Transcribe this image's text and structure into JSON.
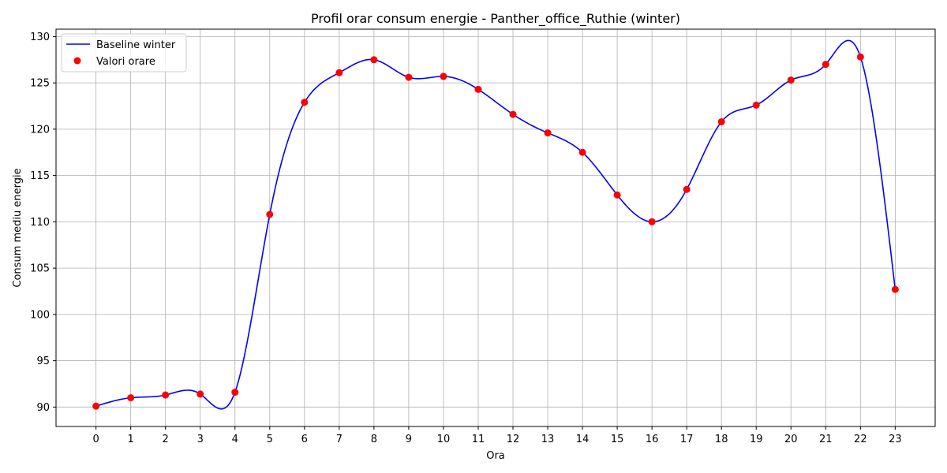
{
  "chart_data": {
    "type": "line",
    "title": "Profil orar consum energie - Panther_office_Ruthie (winter)",
    "xlabel": "Ora",
    "ylabel": "Consum mediu energie",
    "x": [
      0,
      1,
      2,
      3,
      4,
      5,
      6,
      7,
      8,
      9,
      10,
      11,
      12,
      13,
      14,
      15,
      16,
      17,
      18,
      19,
      20,
      21,
      22,
      23
    ],
    "x_ticks": [
      "0",
      "1",
      "2",
      "3",
      "4",
      "5",
      "6",
      "7",
      "8",
      "9",
      "10",
      "11",
      "12",
      "13",
      "14",
      "15",
      "16",
      "17",
      "18",
      "19",
      "20",
      "21",
      "22",
      "23"
    ],
    "y_ticks": [
      "90",
      "95",
      "100",
      "105",
      "110",
      "115",
      "120",
      "125",
      "130"
    ],
    "xlim": [
      -1.15,
      24.15
    ],
    "ylim": [
      87.9,
      130.8
    ],
    "grid": true,
    "legend_position": "top-left",
    "series": [
      {
        "name": "Baseline winter",
        "kind": "line",
        "color": "#0000ff",
        "values": [
          90.1,
          91.0,
          91.3,
          91.4,
          91.6,
          110.8,
          122.9,
          126.1,
          127.5,
          125.6,
          125.7,
          124.3,
          121.6,
          119.6,
          117.5,
          112.9,
          110.0,
          113.5,
          120.8,
          122.6,
          125.3,
          127.0,
          127.8,
          102.7
        ]
      },
      {
        "name": "Valori orare",
        "kind": "scatter",
        "color": "#ff0000",
        "values": [
          90.1,
          91.0,
          91.3,
          91.4,
          91.6,
          110.8,
          122.9,
          126.1,
          127.5,
          125.6,
          125.7,
          124.3,
          121.6,
          119.6,
          117.5,
          112.9,
          110.0,
          113.5,
          120.8,
          122.6,
          125.3,
          127.0,
          127.8,
          102.7
        ]
      }
    ]
  }
}
